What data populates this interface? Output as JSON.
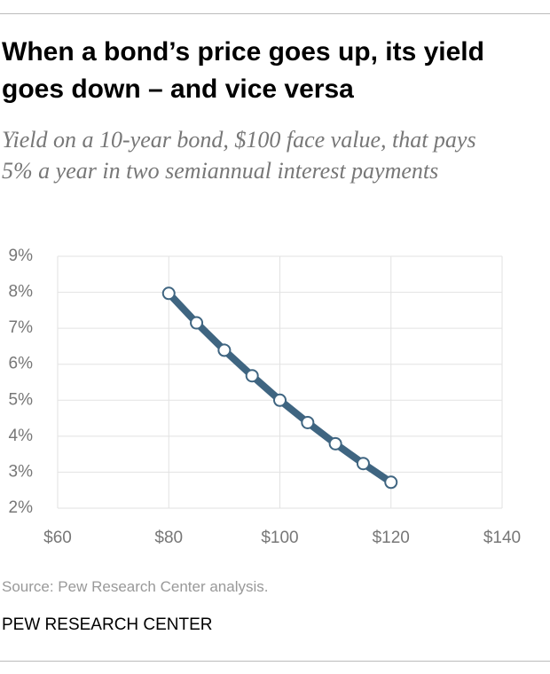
{
  "chart_data": {
    "type": "line",
    "title": "When a bond’s price goes up, its yield goes down – and vice versa",
    "subtitle": "Yield on a 10-year bond, $100 face value, that pays 5% a year in two semiannual interest payments",
    "x": [
      80,
      85,
      90,
      95,
      100,
      105,
      110,
      115,
      120
    ],
    "values": [
      7.97,
      7.15,
      6.39,
      5.68,
      5.0,
      4.38,
      3.79,
      3.24,
      2.72
    ],
    "color": "#3f6581",
    "xlim": [
      60,
      140
    ],
    "xticks": [
      {
        "value": 60,
        "label": "$60"
      },
      {
        "value": 80,
        "label": "$80"
      },
      {
        "value": 100,
        "label": "$100"
      },
      {
        "value": 120,
        "label": "$120"
      },
      {
        "value": 140,
        "label": "$140"
      }
    ],
    "ylim": [
      2,
      9
    ],
    "yticks": [
      {
        "value": 2,
        "label": "2%"
      },
      {
        "value": 3,
        "label": "3%"
      },
      {
        "value": 4,
        "label": "4%"
      },
      {
        "value": 5,
        "label": "5%"
      },
      {
        "value": 6,
        "label": "6%"
      },
      {
        "value": 7,
        "label": "7%"
      },
      {
        "value": 8,
        "label": "8%"
      },
      {
        "value": 9,
        "label": "9%"
      }
    ],
    "grid": true,
    "source": "Source: Pew Research Center analysis.",
    "credit": "PEW RESEARCH CENTER"
  }
}
